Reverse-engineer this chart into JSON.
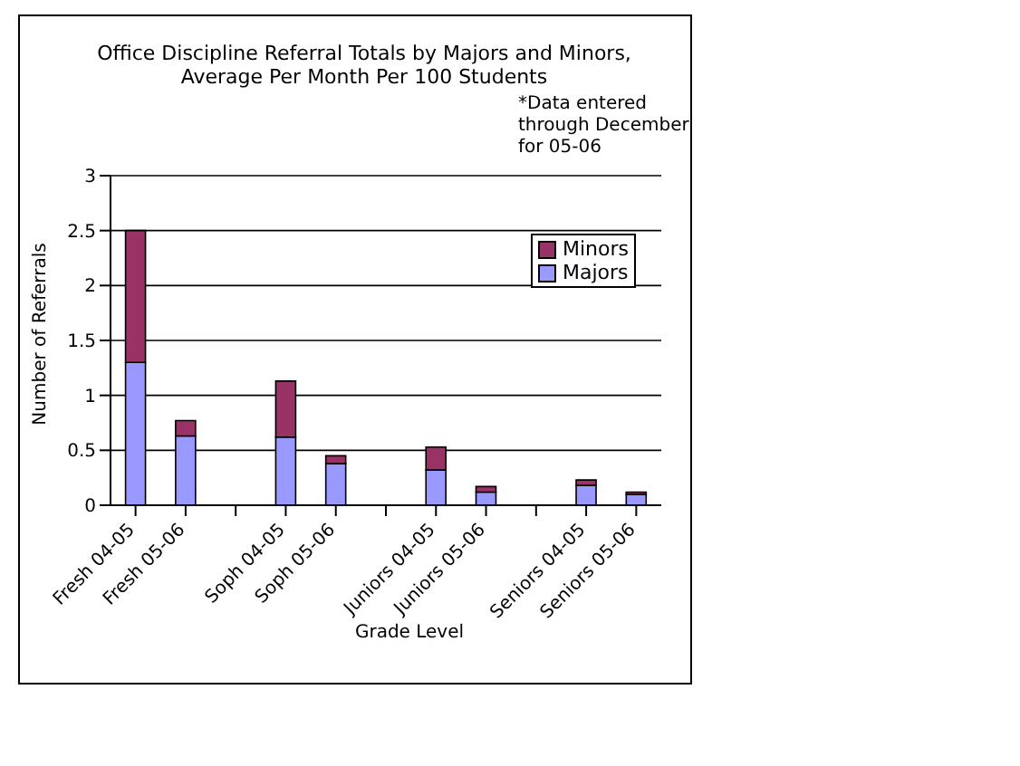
{
  "chart_data": {
    "type": "bar",
    "title": "Office Discipline Referral Totals by Majors and Minors, Average Per Month Per 100 Students",
    "xlabel": "Grade Level",
    "ylabel": "Number of Referrals",
    "annotations": [
      "*Data entered through December for 05-06"
    ],
    "categories": [
      "Fresh 04-05",
      "Fresh 05-06",
      null,
      "Soph 04-05",
      "Soph 05-06",
      null,
      "Juniors 04-05",
      "Juniors 05-06",
      null,
      "Seniors 04-05",
      "Seniors 05-06"
    ],
    "series": [
      {
        "name": "Majors",
        "color": "#9999ff",
        "values": [
          1.3,
          0.63,
          null,
          0.62,
          0.38,
          null,
          0.32,
          0.12,
          null,
          0.18,
          0.1
        ]
      },
      {
        "name": "Minors",
        "color": "#993366",
        "values": [
          1.2,
          0.14,
          null,
          0.51,
          0.07,
          null,
          0.21,
          0.05,
          null,
          0.05,
          0.02
        ]
      }
    ],
    "stacked": true,
    "ylim": [
      0,
      3
    ],
    "yticks": [
      0,
      0.5,
      1,
      1.5,
      2,
      2.5,
      3
    ],
    "grid": "y",
    "legend": "top right"
  }
}
